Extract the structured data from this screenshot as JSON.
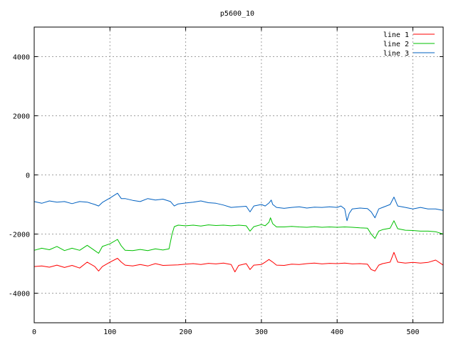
{
  "chart_data": {
    "type": "line",
    "title": "p5600_10",
    "xlabel": "",
    "ylabel": "",
    "xlim": [
      0,
      540
    ],
    "ylim": [
      -5000,
      5000
    ],
    "xticks": [
      0,
      100,
      200,
      300,
      400,
      500
    ],
    "yticks": [
      -4000,
      -2000,
      0,
      2000,
      4000
    ],
    "grid": true,
    "legend_position": "top-right",
    "series": [
      {
        "name": "line 1",
        "color": "#ff0000",
        "points": [
          [
            0,
            -3100
          ],
          [
            10,
            -3080
          ],
          [
            20,
            -3120
          ],
          [
            30,
            -3050
          ],
          [
            40,
            -3130
          ],
          [
            50,
            -3060
          ],
          [
            60,
            -3150
          ],
          [
            70,
            -2950
          ],
          [
            80,
            -3100
          ],
          [
            85,
            -3250
          ],
          [
            90,
            -3100
          ],
          [
            100,
            -2950
          ],
          [
            110,
            -2820
          ],
          [
            115,
            -2950
          ],
          [
            120,
            -3050
          ],
          [
            130,
            -3080
          ],
          [
            140,
            -3030
          ],
          [
            150,
            -3080
          ],
          [
            160,
            -3000
          ],
          [
            170,
            -3060
          ],
          [
            180,
            -3050
          ],
          [
            190,
            -3040
          ],
          [
            200,
            -3020
          ],
          [
            210,
            -3000
          ],
          [
            220,
            -3030
          ],
          [
            230,
            -2990
          ],
          [
            240,
            -3010
          ],
          [
            250,
            -2980
          ],
          [
            260,
            -3030
          ],
          [
            265,
            -3280
          ],
          [
            270,
            -3060
          ],
          [
            280,
            -3000
          ],
          [
            285,
            -3200
          ],
          [
            290,
            -3050
          ],
          [
            300,
            -3030
          ],
          [
            305,
            -2950
          ],
          [
            310,
            -2860
          ],
          [
            315,
            -2950
          ],
          [
            320,
            -3050
          ],
          [
            330,
            -3060
          ],
          [
            340,
            -3020
          ],
          [
            350,
            -3030
          ],
          [
            360,
            -3000
          ],
          [
            370,
            -2980
          ],
          [
            380,
            -3010
          ],
          [
            390,
            -2990
          ],
          [
            400,
            -3000
          ],
          [
            410,
            -2980
          ],
          [
            420,
            -3010
          ],
          [
            430,
            -3000
          ],
          [
            440,
            -3020
          ],
          [
            445,
            -3200
          ],
          [
            450,
            -3250
          ],
          [
            455,
            -3050
          ],
          [
            460,
            -3000
          ],
          [
            470,
            -2950
          ],
          [
            475,
            -2620
          ],
          [
            480,
            -2950
          ],
          [
            490,
            -2980
          ],
          [
            500,
            -2960
          ],
          [
            510,
            -2980
          ],
          [
            520,
            -2960
          ],
          [
            530,
            -2880
          ],
          [
            540,
            -3050
          ]
        ]
      },
      {
        "name": "line 2",
        "color": "#00c000",
        "points": [
          [
            0,
            -2550
          ],
          [
            10,
            -2480
          ],
          [
            20,
            -2530
          ],
          [
            30,
            -2420
          ],
          [
            40,
            -2560
          ],
          [
            50,
            -2480
          ],
          [
            60,
            -2550
          ],
          [
            70,
            -2380
          ],
          [
            80,
            -2560
          ],
          [
            85,
            -2650
          ],
          [
            90,
            -2420
          ],
          [
            100,
            -2330
          ],
          [
            110,
            -2180
          ],
          [
            115,
            -2400
          ],
          [
            120,
            -2550
          ],
          [
            130,
            -2560
          ],
          [
            140,
            -2520
          ],
          [
            150,
            -2560
          ],
          [
            160,
            -2500
          ],
          [
            170,
            -2540
          ],
          [
            178,
            -2500
          ],
          [
            182,
            -2000
          ],
          [
            185,
            -1750
          ],
          [
            190,
            -1700
          ],
          [
            200,
            -1720
          ],
          [
            210,
            -1700
          ],
          [
            220,
            -1730
          ],
          [
            230,
            -1690
          ],
          [
            240,
            -1710
          ],
          [
            250,
            -1700
          ],
          [
            260,
            -1720
          ],
          [
            270,
            -1700
          ],
          [
            280,
            -1720
          ],
          [
            285,
            -1900
          ],
          [
            290,
            -1750
          ],
          [
            300,
            -1680
          ],
          [
            305,
            -1720
          ],
          [
            310,
            -1600
          ],
          [
            312,
            -1450
          ],
          [
            315,
            -1650
          ],
          [
            320,
            -1760
          ],
          [
            330,
            -1760
          ],
          [
            340,
            -1740
          ],
          [
            350,
            -1760
          ],
          [
            360,
            -1770
          ],
          [
            370,
            -1750
          ],
          [
            380,
            -1770
          ],
          [
            390,
            -1760
          ],
          [
            400,
            -1770
          ],
          [
            410,
            -1760
          ],
          [
            420,
            -1770
          ],
          [
            430,
            -1790
          ],
          [
            440,
            -1800
          ],
          [
            445,
            -2000
          ],
          [
            450,
            -2150
          ],
          [
            455,
            -1900
          ],
          [
            460,
            -1850
          ],
          [
            470,
            -1800
          ],
          [
            475,
            -1550
          ],
          [
            480,
            -1820
          ],
          [
            490,
            -1870
          ],
          [
            500,
            -1880
          ],
          [
            510,
            -1900
          ],
          [
            520,
            -1900
          ],
          [
            530,
            -1920
          ],
          [
            540,
            -2000
          ]
        ]
      },
      {
        "name": "line 3",
        "color": "#0060c0",
        "points": [
          [
            0,
            -900
          ],
          [
            10,
            -960
          ],
          [
            20,
            -880
          ],
          [
            30,
            -920
          ],
          [
            40,
            -900
          ],
          [
            50,
            -970
          ],
          [
            60,
            -900
          ],
          [
            70,
            -920
          ],
          [
            80,
            -1000
          ],
          [
            85,
            -1050
          ],
          [
            90,
            -930
          ],
          [
            100,
            -780
          ],
          [
            110,
            -620
          ],
          [
            115,
            -800
          ],
          [
            120,
            -800
          ],
          [
            130,
            -860
          ],
          [
            140,
            -900
          ],
          [
            150,
            -800
          ],
          [
            160,
            -850
          ],
          [
            170,
            -820
          ],
          [
            180,
            -900
          ],
          [
            185,
            -1050
          ],
          [
            190,
            -980
          ],
          [
            200,
            -950
          ],
          [
            210,
            -920
          ],
          [
            220,
            -880
          ],
          [
            230,
            -940
          ],
          [
            240,
            -960
          ],
          [
            250,
            -1020
          ],
          [
            260,
            -1100
          ],
          [
            270,
            -1080
          ],
          [
            280,
            -1060
          ],
          [
            285,
            -1250
          ],
          [
            290,
            -1050
          ],
          [
            300,
            -1000
          ],
          [
            305,
            -1050
          ],
          [
            310,
            -950
          ],
          [
            313,
            -850
          ],
          [
            315,
            -1000
          ],
          [
            320,
            -1100
          ],
          [
            330,
            -1130
          ],
          [
            340,
            -1100
          ],
          [
            350,
            -1080
          ],
          [
            360,
            -1120
          ],
          [
            370,
            -1090
          ],
          [
            380,
            -1100
          ],
          [
            390,
            -1080
          ],
          [
            400,
            -1100
          ],
          [
            405,
            -1050
          ],
          [
            410,
            -1150
          ],
          [
            413,
            -1550
          ],
          [
            416,
            -1300
          ],
          [
            420,
            -1150
          ],
          [
            430,
            -1120
          ],
          [
            440,
            -1140
          ],
          [
            445,
            -1250
          ],
          [
            450,
            -1450
          ],
          [
            455,
            -1150
          ],
          [
            460,
            -1100
          ],
          [
            470,
            -1000
          ],
          [
            475,
            -750
          ],
          [
            480,
            -1050
          ],
          [
            490,
            -1100
          ],
          [
            500,
            -1150
          ],
          [
            510,
            -1100
          ],
          [
            520,
            -1150
          ],
          [
            530,
            -1150
          ],
          [
            540,
            -1200
          ]
        ]
      }
    ]
  }
}
